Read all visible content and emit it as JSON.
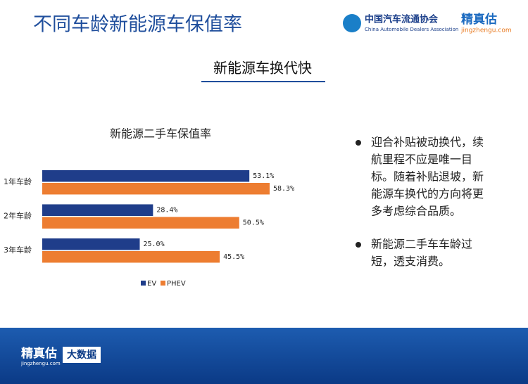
{
  "header": {
    "title": "不同车龄新能源车保值率",
    "association": "中国汽车流通协会",
    "association_en": "China Automobile Dealers Association",
    "brand": "精真估",
    "brand_url": "jingzhengu.com"
  },
  "subtitle": "新能源车换代快",
  "chart_data": {
    "type": "hbar",
    "title": "新能源二手车保值率",
    "categories": [
      "1年车龄",
      "2年车龄",
      "3年车龄"
    ],
    "series": [
      {
        "name": "EV",
        "color": "#1f3d8a",
        "values": [
          53.1,
          28.4,
          25.0
        ],
        "value_labels": [
          "53.1%",
          "28.4%",
          "25.0%"
        ]
      },
      {
        "name": "PHEV",
        "color": "#ed7d31",
        "values": [
          58.3,
          50.5,
          45.5
        ],
        "value_labels": [
          "58.3%",
          "50.5%",
          "45.5%"
        ]
      }
    ],
    "legend": "bottom"
  },
  "bullets": [
    [
      "迎合补贴被动换代，续",
      "航里程不应是唯一目",
      "标。随着补贴退坡，新",
      "能源车换代的方向将更",
      "多考虑综合品质。"
    ],
    [
      "新能源二手车车龄过",
      "短，透支消费。"
    ]
  ],
  "footer": {
    "brand": "精真估",
    "brand_url": "jingzhengu.com",
    "badge": "大数据"
  }
}
